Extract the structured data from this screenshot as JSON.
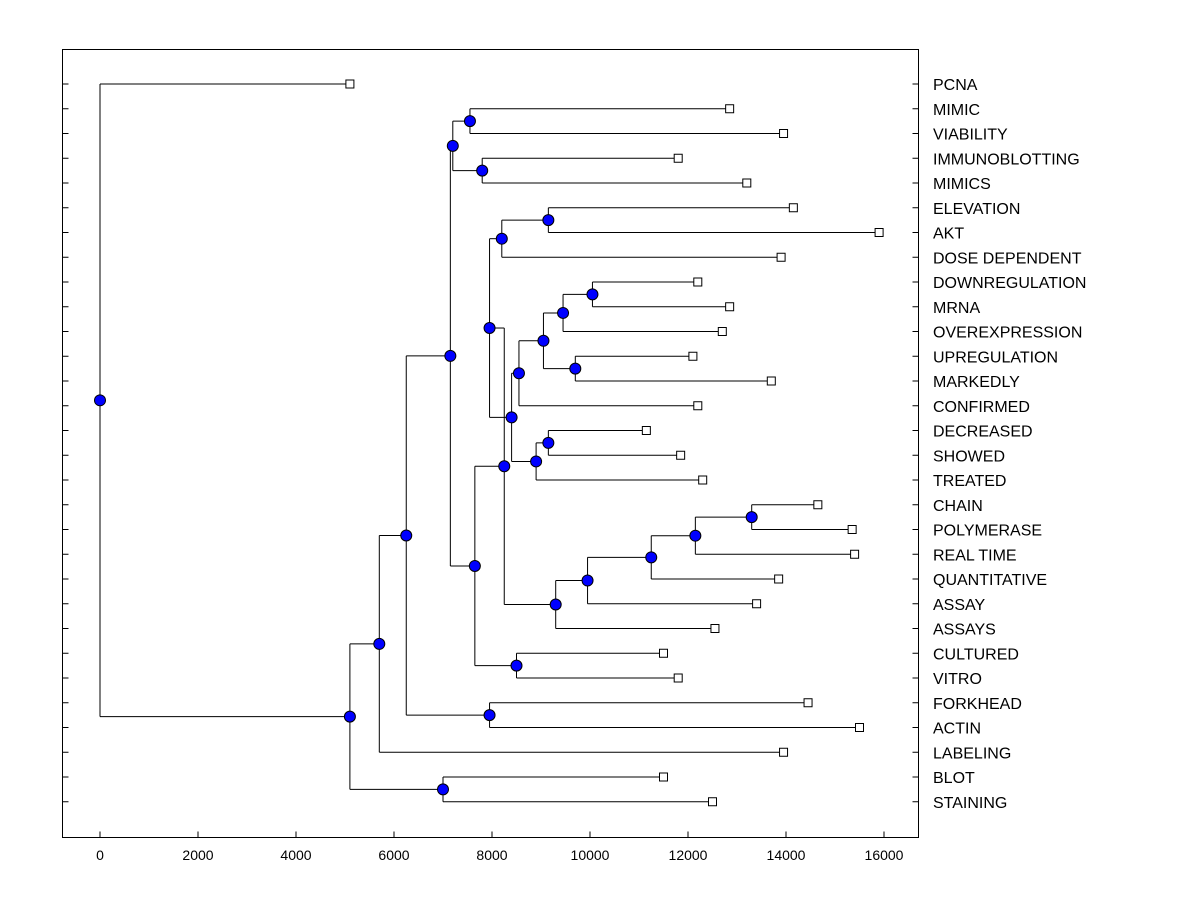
{
  "chart_data": {
    "type": "dendrogram",
    "title": "",
    "xlabel": "",
    "ylabel": "",
    "xlim": [
      -800,
      17100
    ],
    "x_ticks": [
      0,
      2000,
      4000,
      6000,
      8000,
      10000,
      12000,
      14000,
      16000
    ],
    "colors": {
      "node": "#0000ff",
      "leaf": "#ffffff",
      "line": "#000000"
    },
    "leaves": [
      {
        "label": "PCNA",
        "value": 5100
      },
      {
        "label": "MIMIC",
        "value": 12850
      },
      {
        "label": "VIABILITY",
        "value": 13950
      },
      {
        "label": "IMMUNOBLOTTING",
        "value": 11800
      },
      {
        "label": "MIMICS",
        "value": 13200
      },
      {
        "label": "ELEVATION",
        "value": 14150
      },
      {
        "label": "AKT",
        "value": 15900
      },
      {
        "label": "DOSE DEPENDENT",
        "value": 13900
      },
      {
        "label": "DOWNREGULATION",
        "value": 12200
      },
      {
        "label": "MRNA",
        "value": 12850
      },
      {
        "label": "OVEREXPRESSION",
        "value": 12700
      },
      {
        "label": "UPREGULATION",
        "value": 12100
      },
      {
        "label": "MARKEDLY",
        "value": 13700
      },
      {
        "label": "CONFIRMED",
        "value": 12200
      },
      {
        "label": "DECREASED",
        "value": 11150
      },
      {
        "label": "SHOWED",
        "value": 11850
      },
      {
        "label": "TREATED",
        "value": 12300
      },
      {
        "label": "CHAIN",
        "value": 14650
      },
      {
        "label": "POLYMERASE",
        "value": 15350
      },
      {
        "label": "REAL TIME",
        "value": 15400
      },
      {
        "label": "QUANTITATIVE",
        "value": 13850
      },
      {
        "label": "ASSAY",
        "value": 13400
      },
      {
        "label": "ASSAYS",
        "value": 12550
      },
      {
        "label": "CULTURED",
        "value": 11500
      },
      {
        "label": "VITRO",
        "value": 11800
      },
      {
        "label": "FORKHEAD",
        "value": 14450
      },
      {
        "label": "ACTIN",
        "value": 15500
      },
      {
        "label": "LABELING",
        "value": 13950
      },
      {
        "label": "BLOT",
        "value": 11500
      },
      {
        "label": "STAINING",
        "value": 12500
      }
    ],
    "nodes": [
      {
        "id": "n_mimic_viab",
        "value": 7550,
        "children": [
          "MIMIC",
          "VIABILITY"
        ]
      },
      {
        "id": "n_immuno_mimics",
        "value": 7800,
        "children": [
          "IMMUNOBLOTTING",
          "MIMICS"
        ]
      },
      {
        "id": "n_g1",
        "value": 7200,
        "children": [
          "n_mimic_viab",
          "n_immuno_mimics"
        ]
      },
      {
        "id": "n_elev_akt",
        "value": 9150,
        "children": [
          "ELEVATION",
          "AKT"
        ]
      },
      {
        "id": "n_elev_dose",
        "value": 8200,
        "children": [
          "n_elev_akt",
          "DOSE DEPENDENT"
        ]
      },
      {
        "id": "n_down_mrna",
        "value": 10050,
        "children": [
          "DOWNREGULATION",
          "MRNA"
        ]
      },
      {
        "id": "n_down_over",
        "value": 9450,
        "children": [
          "n_down_mrna",
          "OVEREXPRESSION"
        ]
      },
      {
        "id": "n_up_mark",
        "value": 9700,
        "children": [
          "UPREGULATION",
          "MARKEDLY"
        ]
      },
      {
        "id": "n_reg",
        "value": 9050,
        "children": [
          "n_down_over",
          "n_up_mark"
        ]
      },
      {
        "id": "n_reg_conf",
        "value": 8550,
        "children": [
          "n_reg",
          "CONFIRMED"
        ]
      },
      {
        "id": "n_dec_show",
        "value": 9150,
        "children": [
          "DECREASED",
          "SHOWED"
        ]
      },
      {
        "id": "n_dec_treat",
        "value": 8900,
        "children": [
          "n_dec_show",
          "TREATED"
        ]
      },
      {
        "id": "n_conf_treat",
        "value": 8400,
        "children": [
          "n_reg_conf",
          "n_dec_treat"
        ]
      },
      {
        "id": "n_g2",
        "value": 7950,
        "children": [
          "n_elev_dose",
          "n_conf_treat"
        ]
      },
      {
        "id": "n_chain_poly",
        "value": 13300,
        "children": [
          "CHAIN",
          "POLYMERASE"
        ]
      },
      {
        "id": "n_chain_rt",
        "value": 12150,
        "children": [
          "n_chain_poly",
          "REAL TIME"
        ]
      },
      {
        "id": "n_chain_quant",
        "value": 11250,
        "children": [
          "n_chain_rt",
          "QUANTITATIVE"
        ]
      },
      {
        "id": "n_chain_assay",
        "value": 9950,
        "children": [
          "n_chain_quant",
          "ASSAY"
        ]
      },
      {
        "id": "n_chain_assays",
        "value": 9300,
        "children": [
          "n_chain_assay",
          "ASSAYS"
        ]
      },
      {
        "id": "n_g3",
        "value": 8250,
        "children": [
          "n_g2",
          "n_chain_assays"
        ]
      },
      {
        "id": "n_cult_vitro",
        "value": 8500,
        "children": [
          "CULTURED",
          "VITRO"
        ]
      },
      {
        "id": "n_g4",
        "value": 7650,
        "children": [
          "n_g3",
          "n_cult_vitro"
        ]
      },
      {
        "id": "n_g5",
        "value": 7150,
        "children": [
          "n_g1",
          "n_g4"
        ]
      },
      {
        "id": "n_fork_actin",
        "value": 7950,
        "children": [
          "FORKHEAD",
          "ACTIN"
        ]
      },
      {
        "id": "n_g6",
        "value": 6250,
        "children": [
          "n_g5",
          "n_fork_actin"
        ]
      },
      {
        "id": "n_g7",
        "value": 5700,
        "children": [
          "n_g6",
          "LABELING"
        ]
      },
      {
        "id": "n_blot_stain",
        "value": 7000,
        "children": [
          "BLOT",
          "STAINING"
        ]
      },
      {
        "id": "n_g8",
        "value": 5100,
        "children": [
          "n_g7",
          "n_blot_stain"
        ]
      },
      {
        "id": "n_root",
        "value": 0,
        "children": [
          "PCNA",
          "n_g8"
        ]
      }
    ]
  }
}
